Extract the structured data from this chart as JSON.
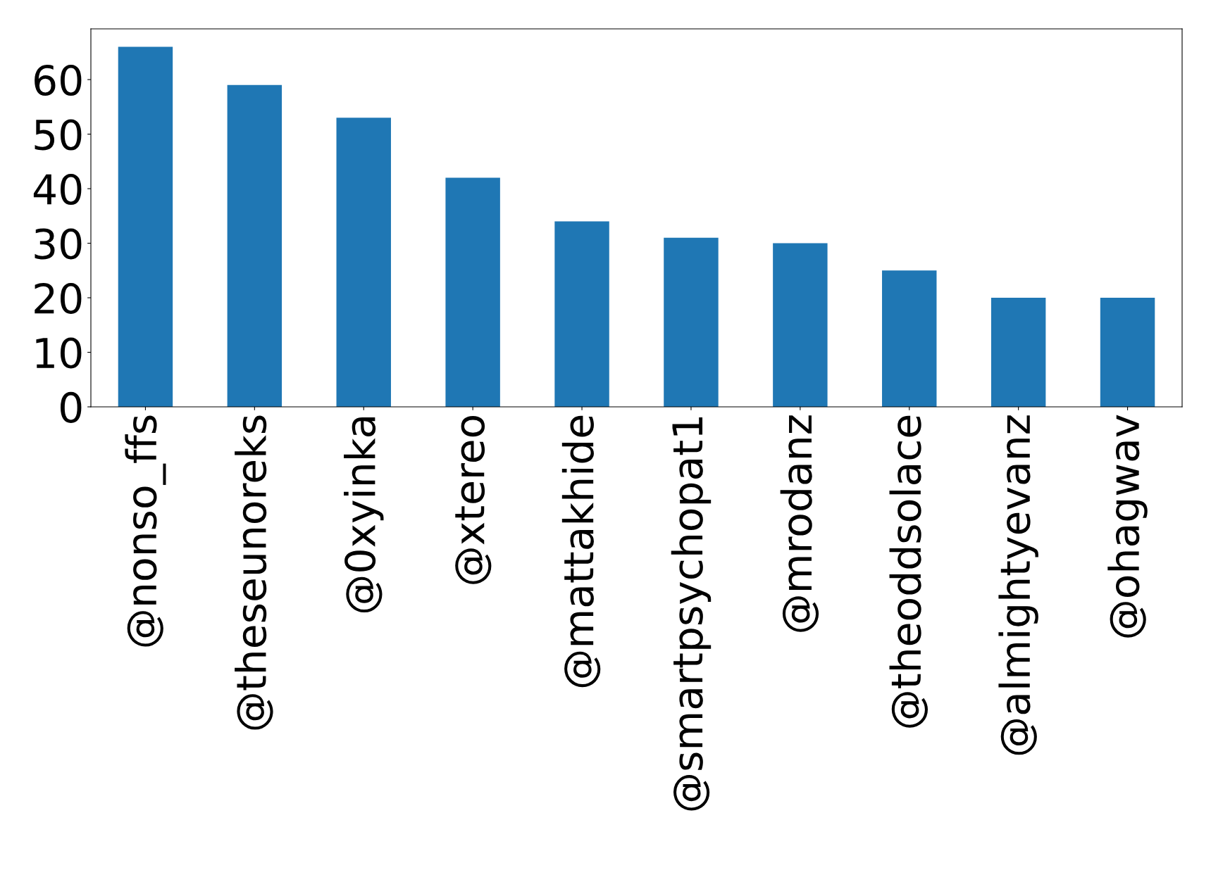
{
  "chart_data": {
    "type": "bar",
    "categories": [
      "@nonso_ffs",
      "@theseunoreks",
      "@0xyinka",
      "@xtereo",
      "@mattakhide",
      "@smartpsychopat1",
      "@mrodanz",
      "@theoddsolace",
      "@almightyevanz",
      "@ohagwav"
    ],
    "values": [
      66,
      59,
      53,
      42,
      34,
      31,
      30,
      25,
      20,
      20
    ],
    "color": "#1f77b4",
    "ylim": [
      0,
      69.3
    ],
    "yticks": [
      0,
      10,
      20,
      30,
      40,
      50,
      60
    ],
    "grid": false
  }
}
